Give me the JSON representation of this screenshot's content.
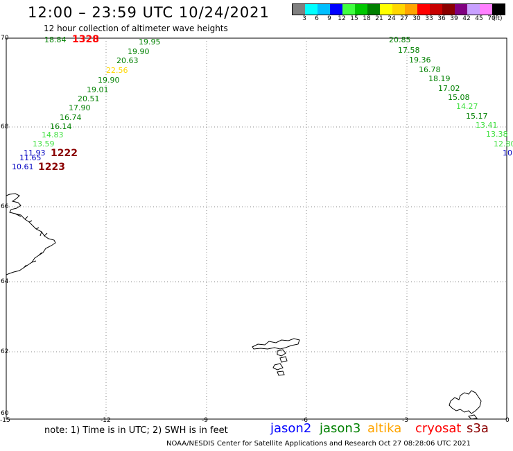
{
  "title": "12:00 – 23:59 UTC 10/24/2021",
  "subtitle": "12 hour collection of altimeter wave heights",
  "legend": {
    "colors": [
      "#808080",
      "#00ffff",
      "#00bfff",
      "#0000ff",
      "#40ff40",
      "#00c800",
      "#008000",
      "#ffff00",
      "#ffd700",
      "#ffa500",
      "#ff0000",
      "#c80000",
      "#8b0000",
      "#800080",
      "#c8a0ff",
      "#ff80ff",
      "#000000"
    ],
    "labels": [
      "3",
      "6",
      "9",
      "12",
      "15",
      "18",
      "21",
      "24",
      "27",
      "30",
      "33",
      "36",
      "39",
      "42",
      "45",
      "70"
    ],
    "unit": "(ft)"
  },
  "map": {
    "lat_labels": [
      "70",
      "68",
      "66",
      "64",
      "62",
      "60"
    ],
    "lon_labels": [
      "-15",
      "-12",
      "-9",
      "-6",
      "-3",
      "0"
    ]
  },
  "wave_heights": [
    {
      "text": "18.84",
      "color": "#008000"
    },
    {
      "text": "19.95",
      "color": "#008000"
    },
    {
      "text": "19.90",
      "color": "#008000"
    },
    {
      "text": "20.63",
      "color": "#008000"
    },
    {
      "text": "22.56",
      "color": "#ffd700"
    },
    {
      "text": "19.90",
      "color": "#008000"
    },
    {
      "text": "19.01",
      "color": "#008000"
    },
    {
      "text": "20.51",
      "color": "#008000"
    },
    {
      "text": "17.90",
      "color": "#008000"
    },
    {
      "text": "16.74",
      "color": "#008000"
    },
    {
      "text": "16.14",
      "color": "#008000"
    },
    {
      "text": "14.83",
      "color": "#40e040"
    },
    {
      "text": "13.59",
      "color": "#40e040"
    },
    {
      "text": "11.93",
      "color": "#0000c0"
    },
    {
      "text": "11.65",
      "color": "#0000c0"
    },
    {
      "text": "10.61",
      "color": "#0000c0"
    },
    {
      "text": "20.85",
      "color": "#008000"
    },
    {
      "text": "17.58",
      "color": "#008000"
    },
    {
      "text": "19.36",
      "color": "#008000"
    },
    {
      "text": "16.78",
      "color": "#008000"
    },
    {
      "text": "18.19",
      "color": "#008000"
    },
    {
      "text": "17.02",
      "color": "#008000"
    },
    {
      "text": "15.08",
      "color": "#008000"
    },
    {
      "text": "14.27",
      "color": "#40e040"
    },
    {
      "text": "15.17",
      "color": "#008000"
    },
    {
      "text": "13.41",
      "color": "#40e040"
    },
    {
      "text": "13.38",
      "color": "#40e040"
    },
    {
      "text": "12.80",
      "color": "#40e040"
    },
    {
      "text": "10.",
      "color": "#0000c0"
    }
  ],
  "time_labels": [
    {
      "text": "1328",
      "color": "#ff0000"
    },
    {
      "text": "1222",
      "color": "#8b0000"
    },
    {
      "text": "1223",
      "color": "#8b0000"
    }
  ],
  "note": "note: 1) Time is in UTC; 2) SWH is in feet",
  "satellites": [
    {
      "name": "jason2",
      "color": "#0000ff"
    },
    {
      "name": "jason3",
      "color": "#008000"
    },
    {
      "name": "altika",
      "color": "#ffa500"
    },
    {
      "name": "cryosat",
      "color": "#ff0000"
    },
    {
      "name": "s3a",
      "color": "#8b0000"
    }
  ],
  "footer": "NOAA/NESDIS Center for Satellite Applications and Research    Oct 27 08:28:06 UTC 2021"
}
